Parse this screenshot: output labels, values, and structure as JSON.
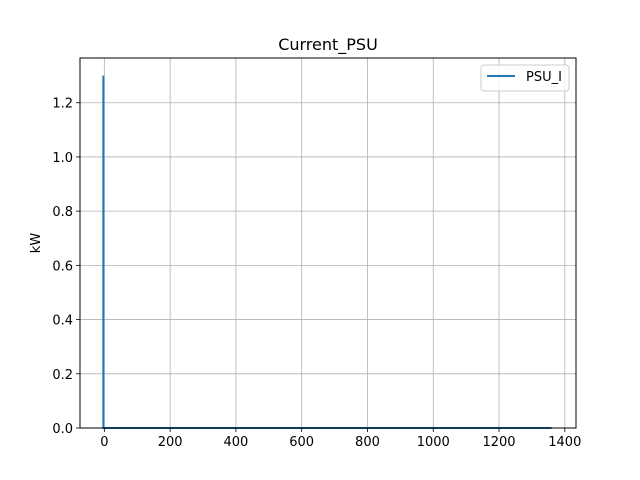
{
  "chart_data": {
    "type": "line",
    "title": "Current_PSU",
    "xlabel": "",
    "ylabel": "kW",
    "xlim": [
      -74,
      1434
    ],
    "ylim": [
      0,
      1.365
    ],
    "xticks": [
      0,
      200,
      400,
      600,
      800,
      1000,
      1200,
      1400
    ],
    "xtick_labels": [
      "0",
      "200",
      "400",
      "600",
      "800",
      "1000",
      "1200",
      "1400"
    ],
    "yticks": [
      0.0,
      0.2,
      0.4,
      0.6,
      0.8,
      1.0,
      1.2
    ],
    "ytick_labels": [
      "0.0",
      "0.2",
      "0.4",
      "0.6",
      "0.8",
      "1.0",
      "1.2"
    ],
    "grid": true,
    "legend_position": "top-right",
    "series": [
      {
        "name": "PSU_I",
        "color": "#1f77b4",
        "x": [
          -3,
          -3,
          1,
          2,
          1360
        ],
        "y": [
          1.3,
          0,
          0,
          0,
          0
        ]
      }
    ]
  }
}
